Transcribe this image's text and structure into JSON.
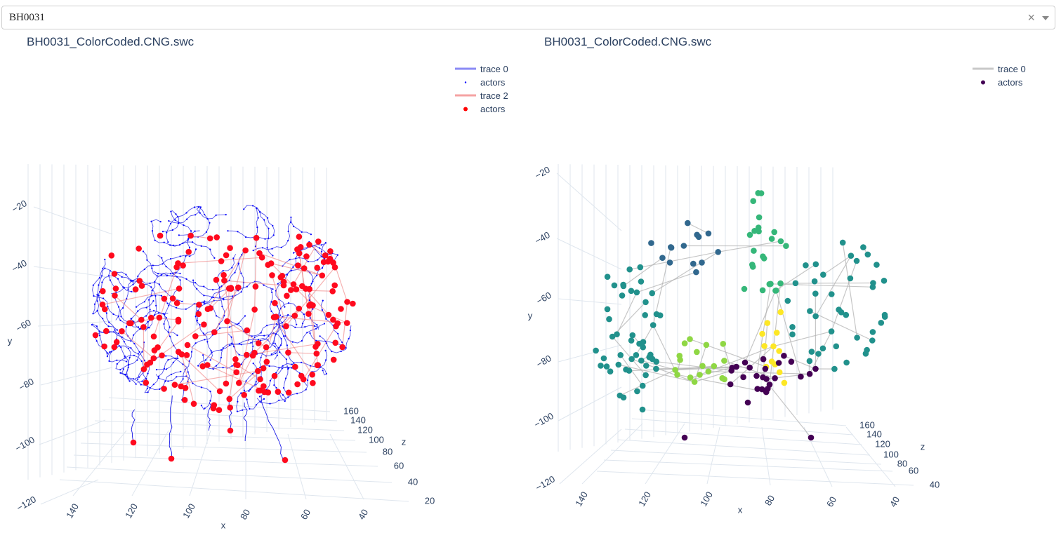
{
  "selector": {
    "value": "BH0031",
    "clear_glyph": "×",
    "icons": [
      "close-icon",
      "chevron-down-icon"
    ]
  },
  "plots": [
    {
      "title": "BH0031_ColorCoded.CNG.swc",
      "legend": [
        {
          "label": "trace 0",
          "kind": "line",
          "color": "#8a8af5"
        },
        {
          "label": "actors",
          "kind": "dot-small",
          "color": "#0000ff"
        },
        {
          "label": "trace 2",
          "kind": "line",
          "color": "#f5a3a3"
        },
        {
          "label": "actors",
          "kind": "dot",
          "color": "#ff0000"
        }
      ],
      "axes": {
        "x": {
          "title": "x",
          "ticks": [
            "140",
            "120",
            "100",
            "80",
            "60",
            "40"
          ]
        },
        "y": {
          "title": "y",
          "ticks": [
            "−20",
            "−40",
            "−60",
            "−80",
            "−100",
            "−120"
          ]
        },
        "z": {
          "title": "z",
          "ticks": [
            "160",
            "140",
            "120",
            "100",
            "80",
            "60",
            "40",
            "20"
          ]
        }
      }
    },
    {
      "title": "BH0031_ColorCoded.CNG.swc",
      "legend": [
        {
          "label": "trace 0",
          "kind": "line",
          "color": "#c8c8c8"
        },
        {
          "label": "actors",
          "kind": "dot",
          "color": "#440154"
        }
      ],
      "axes": {
        "x": {
          "title": "x",
          "ticks": [
            "140",
            "120",
            "100",
            "80",
            "60",
            "40"
          ]
        },
        "y": {
          "title": "y",
          "ticks": [
            "−20",
            "−40",
            "−60",
            "−80",
            "−100",
            "−120"
          ]
        },
        "z": {
          "title": "z",
          "ticks": [
            "160",
            "140",
            "120",
            "100",
            "80",
            "60",
            "40"
          ]
        }
      },
      "colorscale": [
        "#440154",
        "#31688e",
        "#21918c",
        "#35b779",
        "#8fd744",
        "#fde725"
      ]
    }
  ]
}
